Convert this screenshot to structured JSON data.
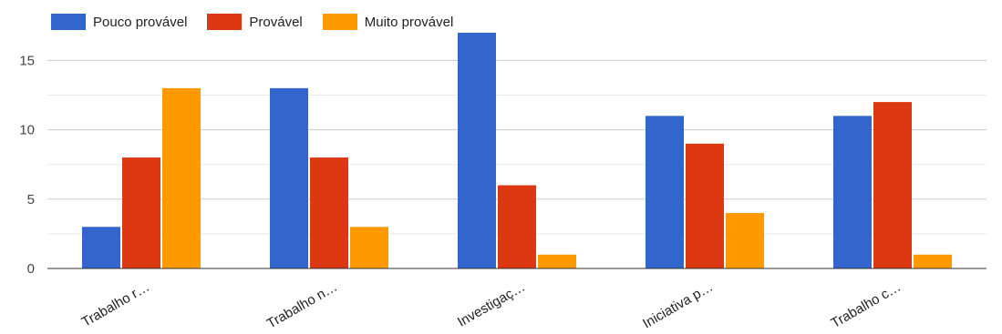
{
  "chart_data": {
    "type": "bar",
    "categories": [
      "Trabalho r…",
      "Trabalho n…",
      "Investigaç…",
      "Iniciativa p…",
      "Trabalho c…"
    ],
    "series": [
      {
        "name": "Pouco provável",
        "color": "#3366cc",
        "values": [
          3,
          13,
          17,
          11,
          11
        ]
      },
      {
        "name": "Provável",
        "color": "#dc3912",
        "values": [
          8,
          8,
          6,
          9,
          12
        ]
      },
      {
        "name": "Muito provável",
        "color": "#ff9900",
        "values": [
          13,
          3,
          1,
          4,
          1
        ]
      }
    ],
    "ylim": [
      0,
      17
    ],
    "yticks": [
      0,
      5,
      10,
      15
    ],
    "grid": true,
    "legend_position": "top-left"
  }
}
